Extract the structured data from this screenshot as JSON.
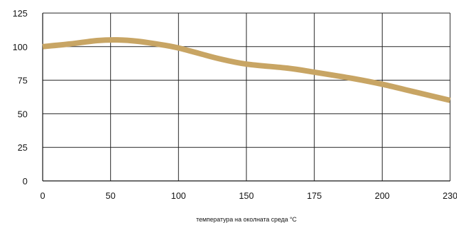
{
  "chart_data": {
    "type": "line",
    "title": "",
    "xlabel": "температура на околната среда °C",
    "ylabel": "",
    "x_ticks": [
      0,
      50,
      100,
      150,
      175,
      200,
      230
    ],
    "y_ticks": [
      0,
      25,
      50,
      75,
      100,
      125
    ],
    "ylim": [
      0,
      125
    ],
    "grid": true,
    "line_color": "#c8a564",
    "series": [
      {
        "points": [
          [
            0,
            100
          ],
          [
            20,
            102
          ],
          [
            40,
            104.5
          ],
          [
            55,
            105
          ],
          [
            70,
            104
          ],
          [
            90,
            101
          ],
          [
            100,
            99
          ],
          [
            115,
            95
          ],
          [
            130,
            91
          ],
          [
            150,
            87
          ],
          [
            165,
            84
          ],
          [
            175,
            81
          ],
          [
            190,
            76
          ],
          [
            200,
            72
          ],
          [
            215,
            66
          ],
          [
            230,
            60
          ]
        ]
      }
    ]
  }
}
